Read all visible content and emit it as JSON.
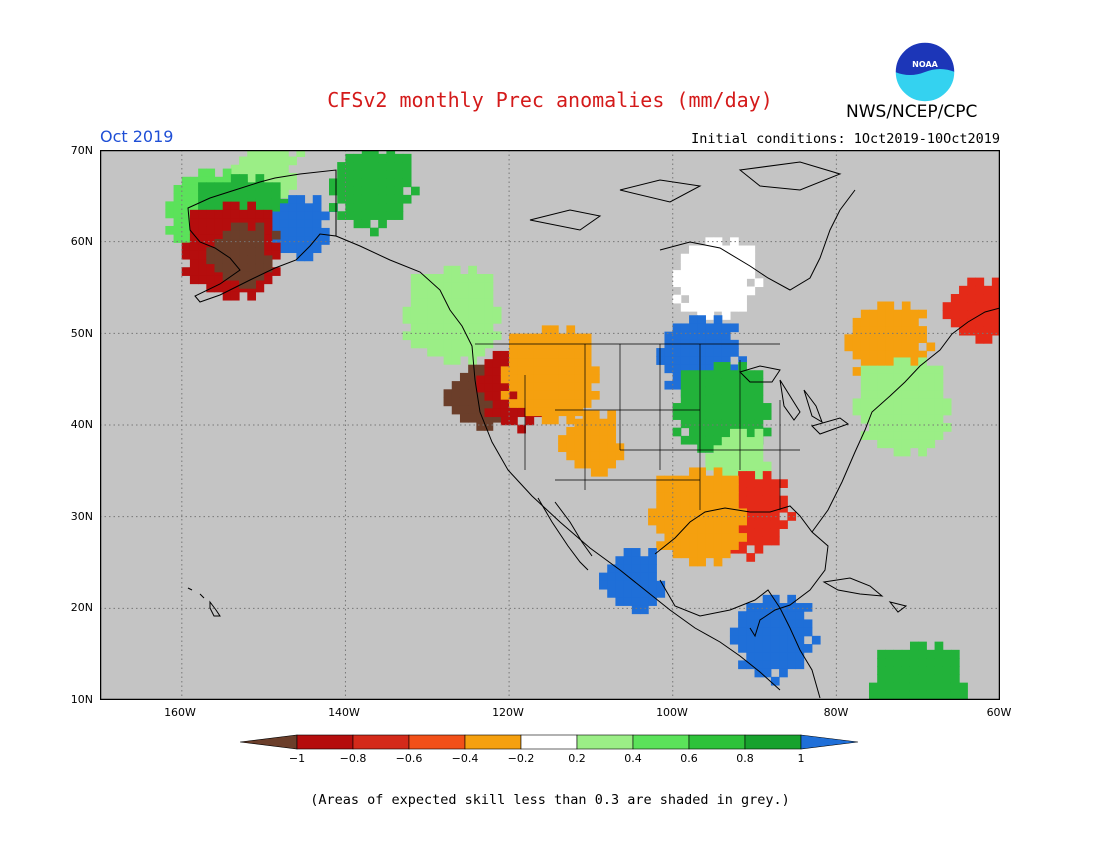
{
  "title": "CFSv2 monthly Prec anomalies (mm/day)",
  "agency": "NWS/NCEP/CPC",
  "logo_text": "NOAA",
  "month": "Oct 2019",
  "initial_conditions": "Initial conditions: 1Oct2019-10Oct2019",
  "lat_labels": [
    "70N",
    "60N",
    "50N",
    "40N",
    "30N",
    "20N",
    "10N"
  ],
  "lon_labels": [
    "160W",
    "140W",
    "120W",
    "100W",
    "80W",
    "60W"
  ],
  "colorbar": {
    "labels": [
      "−1",
      "−0.8",
      "−0.6",
      "−0.4",
      "−0.2",
      "0.2",
      "0.4",
      "0.6",
      "0.8",
      "1"
    ],
    "colors": [
      "#6b3e2a",
      "#b50d0d",
      "#d42a1a",
      "#f25018",
      "#f5a00f",
      "#ffffff",
      "#9bee86",
      "#5be25a",
      "#2ec23a",
      "#17a22e",
      "#1f6fd8"
    ]
  },
  "footnote": "(Areas of expected skill less than 0.3 are shaded in grey.)",
  "map_colors": {
    "background": "#c4c4c4",
    "coast": "#000000",
    "brown": "#6b3e2a",
    "darkred": "#b50d0d",
    "red": "#e42a18",
    "orange": "#f5a00f",
    "white": "#ffffff",
    "lightgreen": "#9bee86",
    "green": "#5be25a",
    "darkgreen": "#22b23a",
    "blue": "#1f6fd8"
  },
  "anomaly_regions": [
    {
      "lat": 67.5,
      "lon": -150,
      "level": "lightgreen"
    },
    {
      "lat": 63.5,
      "lon": -157,
      "level": "green"
    },
    {
      "lat": 62.0,
      "lon": -153,
      "level": "darkgreen"
    },
    {
      "lat": 61.5,
      "lon": -146,
      "level": "blue"
    },
    {
      "lat": 66.0,
      "lon": -137,
      "level": "darkgreen"
    },
    {
      "lat": 59.0,
      "lon": -154,
      "level": "darkred"
    },
    {
      "lat": 58.5,
      "lon": -153,
      "level": "brown"
    },
    {
      "lat": 56.0,
      "lon": -95,
      "level": "white"
    },
    {
      "lat": 52.0,
      "lon": -127,
      "level": "lightgreen"
    },
    {
      "lat": 43.0,
      "lon": -124,
      "level": "brown"
    },
    {
      "lat": 44.5,
      "lon": -119,
      "level": "darkred"
    },
    {
      "lat": 45.5,
      "lon": -115,
      "level": "orange"
    },
    {
      "lat": 38.0,
      "lon": -110,
      "level": "orange"
    },
    {
      "lat": 47.5,
      "lon": -97,
      "level": "blue"
    },
    {
      "lat": 41.5,
      "lon": -94,
      "level": "darkgreen"
    },
    {
      "lat": 36.0,
      "lon": -92,
      "level": "lightgreen"
    },
    {
      "lat": 30.5,
      "lon": -91,
      "level": "red"
    },
    {
      "lat": 30.0,
      "lon": -97,
      "level": "orange"
    },
    {
      "lat": 52.5,
      "lon": -63,
      "level": "red"
    },
    {
      "lat": 49.0,
      "lon": -74,
      "level": "orange"
    },
    {
      "lat": 42.0,
      "lon": -72,
      "level": "lightgreen"
    },
    {
      "lat": 23.0,
      "lon": -105,
      "level": "blue"
    },
    {
      "lat": 17.0,
      "lon": -88,
      "level": "blue"
    },
    {
      "lat": 11.0,
      "lon": -70,
      "level": "darkgreen"
    }
  ]
}
